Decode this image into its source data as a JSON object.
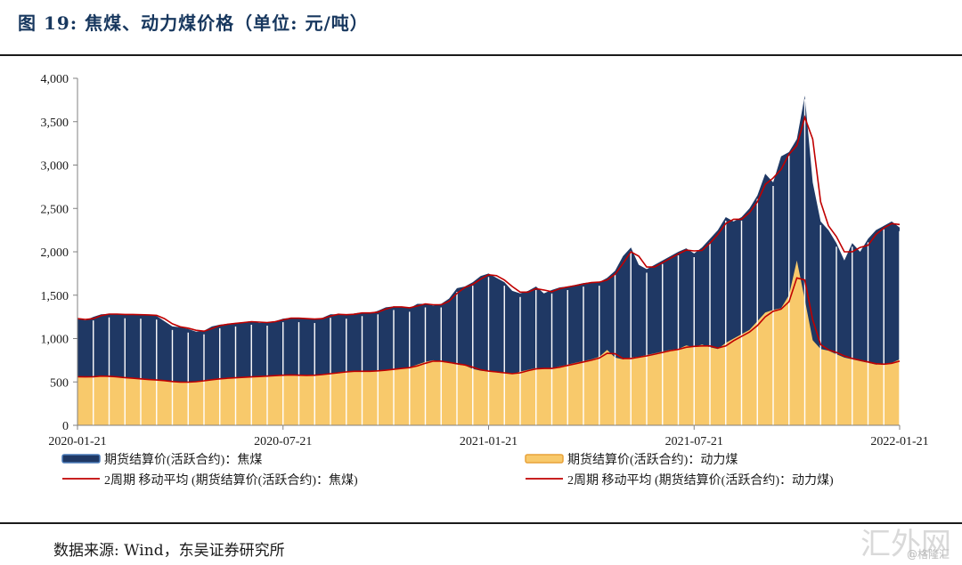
{
  "figure": {
    "title": "图 19:  焦煤、动力煤价格（单位:  元/吨）",
    "source": "数据来源:  Wind，东吴证券研究所",
    "watermark": "汇外网",
    "watermark_sub": "@格隆汇"
  },
  "colors": {
    "coking_fill": "#1f3864",
    "thermal_fill": "#f8c96b",
    "ma_line": "#c00000",
    "axis": "#808080"
  },
  "chart_data": {
    "type": "area",
    "title": "焦煤、动力煤价格（单位:  元/吨）",
    "xlabel": "",
    "ylabel": "",
    "ylim": [
      0,
      4000
    ],
    "y_ticks": [
      "0",
      "500",
      "1,000",
      "1,500",
      "2,000",
      "2,500",
      "3,000",
      "3,500",
      "4,000"
    ],
    "x_ticks": [
      "2020-01-21",
      "2020-07-21",
      "2021-01-21",
      "2021-07-21",
      "2022-01-21"
    ],
    "x_tick_index": [
      0,
      26,
      52,
      78,
      104
    ],
    "x": [
      "2020-01-21",
      "2020-01-28",
      "2020-02-04",
      "2020-02-11",
      "2020-02-18",
      "2020-02-25",
      "2020-03-03",
      "2020-03-10",
      "2020-03-17",
      "2020-03-24",
      "2020-03-31",
      "2020-04-07",
      "2020-04-14",
      "2020-04-21",
      "2020-04-28",
      "2020-05-05",
      "2020-05-12",
      "2020-05-19",
      "2020-05-26",
      "2020-06-02",
      "2020-06-09",
      "2020-06-16",
      "2020-06-23",
      "2020-06-30",
      "2020-07-07",
      "2020-07-14",
      "2020-07-21",
      "2020-07-28",
      "2020-08-04",
      "2020-08-11",
      "2020-08-18",
      "2020-08-25",
      "2020-09-01",
      "2020-09-08",
      "2020-09-15",
      "2020-09-22",
      "2020-09-29",
      "2020-10-06",
      "2020-10-13",
      "2020-10-20",
      "2020-10-27",
      "2020-11-03",
      "2020-11-10",
      "2020-11-17",
      "2020-11-24",
      "2020-12-01",
      "2020-12-08",
      "2020-12-15",
      "2020-12-22",
      "2020-12-29",
      "2021-01-05",
      "2021-01-12",
      "2021-01-21",
      "2021-01-26",
      "2021-02-02",
      "2021-02-09",
      "2021-02-16",
      "2021-02-23",
      "2021-03-02",
      "2021-03-09",
      "2021-03-16",
      "2021-03-23",
      "2021-03-30",
      "2021-04-06",
      "2021-04-13",
      "2021-04-20",
      "2021-04-27",
      "2021-05-04",
      "2021-05-11",
      "2021-05-18",
      "2021-05-25",
      "2021-06-01",
      "2021-06-08",
      "2021-06-15",
      "2021-06-22",
      "2021-06-29",
      "2021-07-06",
      "2021-07-13",
      "2021-07-21",
      "2021-07-27",
      "2021-08-03",
      "2021-08-10",
      "2021-08-17",
      "2021-08-24",
      "2021-08-31",
      "2021-09-07",
      "2021-09-14",
      "2021-09-21",
      "2021-09-28",
      "2021-10-05",
      "2021-10-12",
      "2021-10-19",
      "2021-10-26",
      "2021-11-02",
      "2021-11-09",
      "2021-11-16",
      "2021-11-23",
      "2021-11-30",
      "2021-12-07",
      "2021-12-14",
      "2021-12-21",
      "2021-12-28",
      "2022-01-04",
      "2022-01-11",
      "2022-01-21"
    ],
    "series": [
      {
        "name": "期货结算价(活跃合约)：焦煤",
        "kind": "area",
        "values": [
          1230,
          1210,
          1250,
          1280,
          1285,
          1280,
          1275,
          1280,
          1270,
          1275,
          1260,
          1200,
          1140,
          1130,
          1110,
          1080,
          1090,
          1140,
          1160,
          1170,
          1180,
          1190,
          1200,
          1180,
          1190,
          1200,
          1230,
          1240,
          1230,
          1230,
          1220,
          1240,
          1280,
          1280,
          1270,
          1290,
          1300,
          1290,
          1320,
          1360,
          1370,
          1360,
          1350,
          1400,
          1400,
          1380,
          1400,
          1460,
          1580,
          1600,
          1650,
          1720,
          1750,
          1700,
          1650,
          1550,
          1520,
          1550,
          1600,
          1520,
          1560,
          1590,
          1600,
          1620,
          1640,
          1650,
          1650,
          1700,
          1780,
          1950,
          2050,
          1850,
          1800,
          1850,
          1900,
          1950,
          2000,
          2040,
          1980,
          2050,
          2150,
          2250,
          2400,
          2350,
          2400,
          2500,
          2650,
          2900,
          2800,
          3100,
          3150,
          3300,
          3800,
          2800,
          2350,
          2250,
          2100,
          1900,
          2100,
          2000,
          2150,
          2250,
          2300,
          2350,
          2280
        ]
      },
      {
        "name": "期货结算价(活跃合约)：动力煤",
        "kind": "area",
        "values": [
          560,
          555,
          565,
          570,
          560,
          555,
          545,
          540,
          530,
          525,
          520,
          510,
          500,
          495,
          500,
          505,
          520,
          530,
          540,
          545,
          550,
          555,
          560,
          565,
          570,
          575,
          580,
          580,
          575,
          575,
          580,
          590,
          600,
          610,
          620,
          625,
          620,
          625,
          630,
          640,
          650,
          660,
          670,
          700,
          730,
          750,
          730,
          720,
          700,
          690,
          650,
          630,
          620,
          610,
          600,
          590,
          620,
          640,
          660,
          650,
          660,
          680,
          700,
          720,
          740,
          760,
          790,
          870,
          780,
          760,
          780,
          790,
          810,
          830,
          850,
          870,
          880,
          920,
          900,
          930,
          900,
          880,
          950,
          1000,
          1050,
          1100,
          1200,
          1300,
          1330,
          1350,
          1500,
          1900,
          1450,
          980,
          880,
          860,
          820,
          780,
          760,
          740,
          720,
          700,
          710,
          720,
          760
        ]
      },
      {
        "name": "2周期  移动平均  (期货结算价(活跃合约)：焦煤)",
        "kind": "line",
        "of_series": 0
      },
      {
        "name": "2周期  移动平均  (期货结算价(活跃合约)：动力煤)",
        "kind": "line",
        "of_series": 1
      }
    ],
    "legend": {
      "placement": "bottom",
      "items": [
        "期货结算价(活跃合约)：焦煤",
        "期货结算价(活跃合约)：动力煤",
        "2周期  移动平均  (期货结算价(活跃合约)：焦煤)",
        "2周期  移动平均  (期货结算价(活跃合约)：动力煤)"
      ]
    },
    "grid": false
  }
}
